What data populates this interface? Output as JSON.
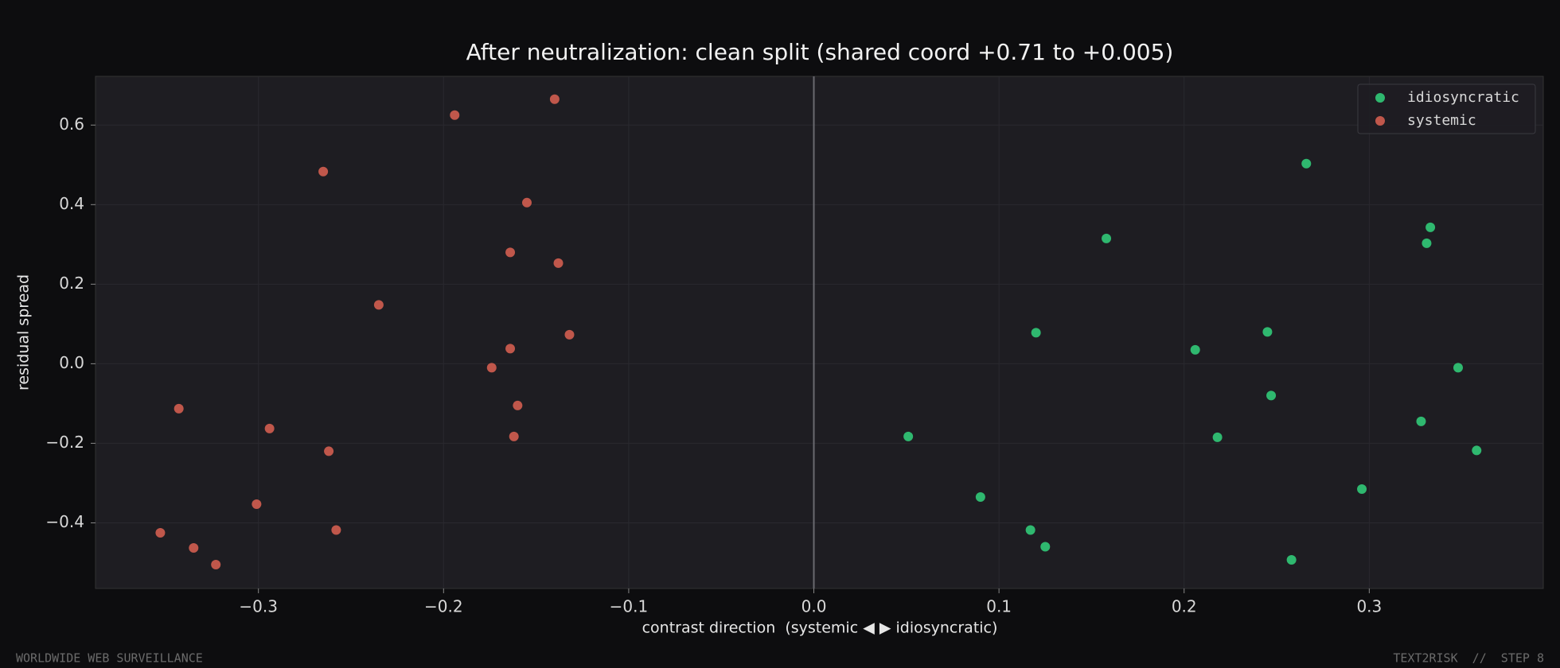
{
  "chart_data": {
    "type": "scatter",
    "title": "After neutralization: clean split (shared coord +0.71 to +0.005)",
    "xlabel": "contrast direction  (systemic ◀ ▶ idiosyncratic)",
    "ylabel": "residual spread",
    "xlim": [
      -0.388,
      0.394
    ],
    "ylim": [
      -0.565,
      0.7225
    ],
    "xticks": [
      {
        "value": -0.3,
        "label": "−0.3"
      },
      {
        "value": -0.2,
        "label": "−0.2"
      },
      {
        "value": -0.1,
        "label": "−0.1"
      },
      {
        "value": 0,
        "label": "0.0"
      },
      0.1,
      0.2,
      0.3
    ],
    "yticks": [
      {
        "value": -0.4,
        "label": "−0.4"
      },
      {
        "value": -0.2,
        "label": "−0.2"
      },
      {
        "value": 0,
        "label": "0.0"
      },
      0.2,
      0.4,
      0.6
    ],
    "grid": true,
    "zero_line": true,
    "legend": "upper right",
    "series": [
      {
        "name": "idiosyncratic",
        "color": "#2fb86f",
        "x": [
          0.266,
          0.158,
          0.333,
          0.331,
          0.12,
          0.245,
          0.206,
          0.348,
          0.247,
          0.051,
          0.218,
          0.328,
          0.358,
          0.296,
          0.09,
          0.117,
          0.125,
          0.258
        ],
        "y": [
          0.503,
          0.315,
          0.343,
          0.303,
          0.078,
          0.08,
          0.035,
          -0.01,
          -0.08,
          -0.183,
          -0.185,
          -0.145,
          -0.218,
          -0.315,
          -0.335,
          -0.418,
          -0.46,
          -0.493
        ]
      },
      {
        "name": "systemic",
        "color": "#c0574b",
        "x": [
          -0.14,
          -0.194,
          -0.265,
          -0.155,
          -0.164,
          -0.138,
          -0.235,
          -0.132,
          -0.164,
          -0.174,
          -0.16,
          -0.343,
          -0.162,
          -0.294,
          -0.262,
          -0.301,
          -0.258,
          -0.353,
          -0.335,
          -0.323
        ],
        "y": [
          0.665,
          0.625,
          0.483,
          0.405,
          0.28,
          0.253,
          0.148,
          0.073,
          0.038,
          -0.01,
          -0.105,
          -0.113,
          -0.183,
          -0.163,
          -0.22,
          -0.353,
          -0.418,
          -0.425,
          -0.463,
          -0.505
        ]
      }
    ]
  },
  "footer": {
    "left": "WORLDWIDE WEB SURVEILLANCE",
    "right": "TEXT2RISK  //  STEP 8"
  }
}
